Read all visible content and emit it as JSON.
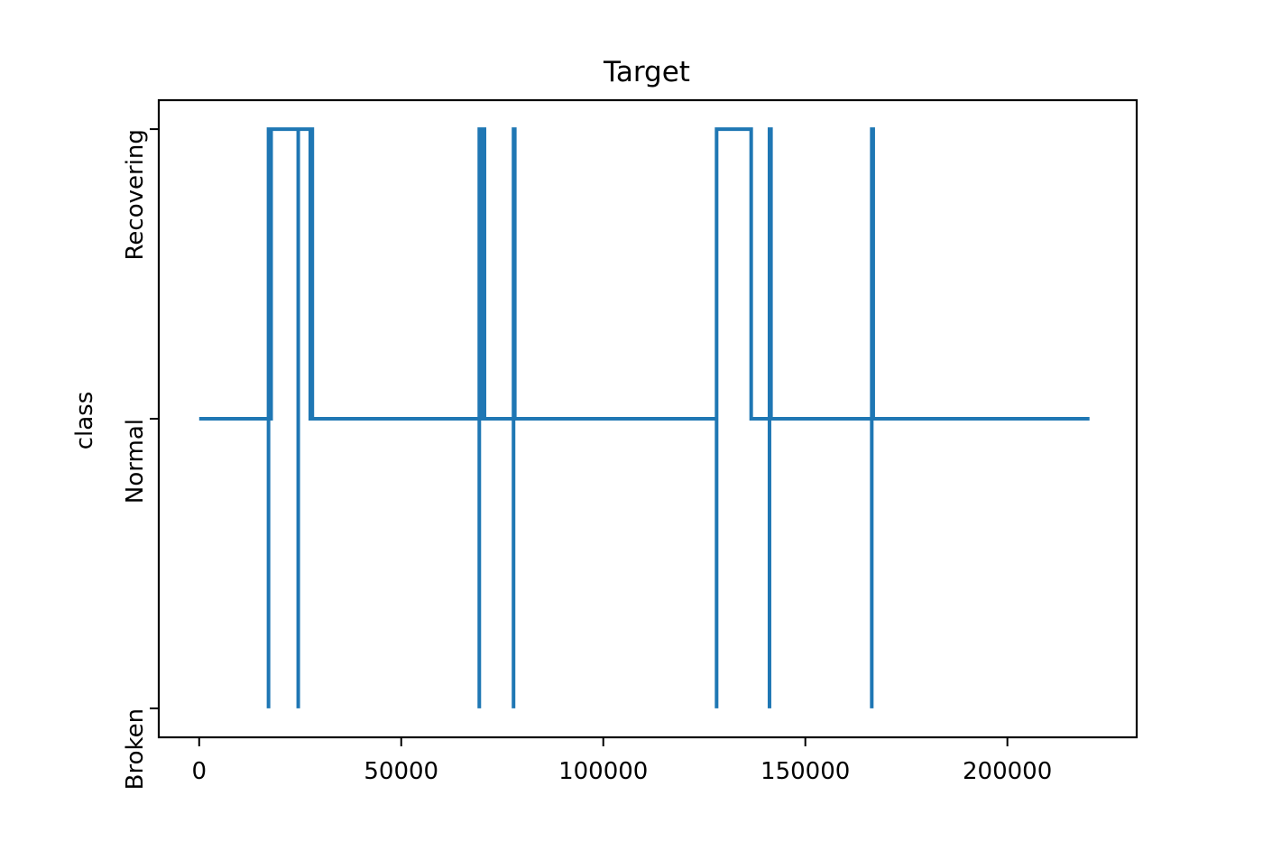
{
  "chart_data": {
    "type": "line",
    "title": "Target",
    "xlabel": "",
    "ylabel": "class",
    "xlim": [
      -10000,
      232000
    ],
    "ylim": [
      -0.1,
      2.1
    ],
    "x_ticks": [
      0,
      50000,
      100000,
      150000,
      200000
    ],
    "x_tick_labels": [
      "0",
      "50000",
      "100000",
      "150000",
      "200000"
    ],
    "y_ticks": [
      0,
      1,
      2
    ],
    "y_tick_labels": [
      "Broken",
      "Normal",
      "Recovering"
    ],
    "grid": false,
    "line_color": "#1f77b4",
    "series": [
      {
        "x": [
          0,
          17155,
          17155,
          17155,
          17480,
          17480,
          17800,
          17800,
          24510,
          24510,
          24510,
          24900,
          24900,
          26800,
          26800,
          27500,
          27500,
          27700,
          27700,
          28000,
          28000,
          69318,
          69318,
          69318,
          69600,
          69600,
          70200,
          70200,
          70600,
          70600,
          77790,
          77790,
          77790,
          78100,
          78100,
          78500,
          78500,
          128040,
          128040,
          128040,
          128400,
          128400,
          136600,
          136600,
          141131,
          141131,
          141131,
          141500,
          141500,
          166440,
          166440,
          166440,
          166800,
          166800,
          220320
        ],
        "y": [
          1,
          1,
          0,
          2,
          2,
          1,
          1,
          2,
          2,
          0,
          2,
          2,
          2,
          2,
          2,
          2,
          1,
          1,
          2,
          2,
          1,
          1,
          0,
          2,
          2,
          1,
          1,
          2,
          2,
          1,
          1,
          0,
          2,
          2,
          1,
          1,
          1,
          1,
          0,
          2,
          2,
          2,
          2,
          1,
          1,
          0,
          2,
          2,
          1,
          1,
          0,
          2,
          2,
          1,
          1
        ]
      }
    ]
  }
}
